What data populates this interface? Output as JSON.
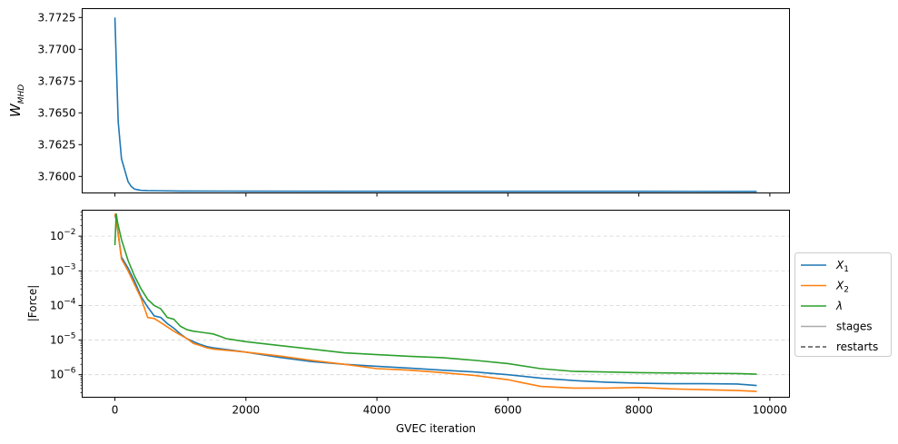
{
  "chart_data": [
    {
      "type": "line",
      "ylabel": "W_MHD",
      "ylabel_main": "W",
      "ylabel_sub": "MHD",
      "xlim": [
        -500,
        10300
      ],
      "ylim": [
        3.7587,
        3.7732
      ],
      "xticks": [
        0,
        2000,
        4000,
        6000,
        8000,
        10000
      ],
      "yticks": [
        3.76,
        3.7625,
        3.765,
        3.7675,
        3.77,
        3.7725
      ],
      "ytick_labels": [
        "3.7600",
        "3.7625",
        "3.7650",
        "3.7675",
        "3.7700",
        "3.7725"
      ],
      "grid": false,
      "series": [
        {
          "color": "#1f77b4",
          "x": [
            0,
            25,
            50,
            100,
            150,
            200,
            250,
            300,
            400,
            500,
            700,
            1000,
            2000,
            4000,
            6000,
            8000,
            9800
          ],
          "y": [
            3.7725,
            3.7683,
            3.7643,
            3.7614,
            3.7605,
            3.7596,
            3.7592,
            3.759,
            3.7589,
            3.75888,
            3.75887,
            3.75885,
            3.75884,
            3.75883,
            3.75883,
            3.75883,
            3.75882
          ]
        }
      ]
    },
    {
      "type": "line",
      "ylabel": "|Force|",
      "xlabel": "GVEC iteration",
      "yscale": "log",
      "xlim": [
        -500,
        10300
      ],
      "ylim_log10": [
        -6.65,
        -1.25
      ],
      "xticks": [
        0,
        2000,
        4000,
        6000,
        8000,
        10000
      ],
      "xtick_labels": [
        "0",
        "2000",
        "4000",
        "6000",
        "8000",
        "10000"
      ],
      "yticks_exp": [
        -6,
        -5,
        -4,
        -3,
        -2
      ],
      "ytick_base": "10",
      "grid": "horizontal dashed at major ticks",
      "legend": {
        "placement": "outside-right",
        "entries": [
          {
            "label_main": "X",
            "label_sub": "1",
            "color": "#1f77b4",
            "style": "solid"
          },
          {
            "label_main": "X",
            "label_sub": "2",
            "color": "#ff7f0e",
            "style": "solid"
          },
          {
            "label_main": "λ",
            "label_sub": "",
            "color": "#2ca02c",
            "style": "solid"
          },
          {
            "label_main": "stages",
            "label_sub": "",
            "color": "#aaaaaa",
            "style": "solid"
          },
          {
            "label_main": "restarts",
            "label_sub": "",
            "color": "#555555",
            "style": "dashed"
          }
        ]
      },
      "series": [
        {
          "color": "#1f77b4",
          "x": [
            0,
            20,
            100,
            200,
            300,
            400,
            500,
            600,
            700,
            800,
            900,
            1000,
            1100,
            1200,
            1300,
            1400,
            1500,
            2000,
            2500,
            3000,
            3500,
            4000,
            4500,
            5000,
            5500,
            6000,
            6500,
            7000,
            7500,
            8000,
            8500,
            9000,
            9500,
            9800
          ],
          "y": [
            0.04,
            0.03,
            0.0025,
            0.0012,
            0.0005,
            0.00018,
            9e-05,
            5e-05,
            4.5e-05,
            3e-05,
            2.2e-05,
            1.5e-05,
            1.1e-05,
            9e-06,
            7.5e-06,
            6.5e-06,
            6e-06,
            4.5e-06,
            3.2e-06,
            2.4e-06,
            2e-06,
            1.75e-06,
            1.55e-06,
            1.35e-06,
            1.2e-06,
            1e-06,
            8e-07,
            6.8e-07,
            6.1e-07,
            5.7e-07,
            5.5e-07,
            5.5e-07,
            5.4e-07,
            4.9e-07
          ]
        },
        {
          "color": "#ff7f0e",
          "x": [
            0,
            20,
            100,
            200,
            300,
            400,
            500,
            600,
            700,
            800,
            900,
            1000,
            1100,
            1200,
            1300,
            1400,
            1500,
            2000,
            2500,
            3000,
            3500,
            4000,
            4500,
            5000,
            5500,
            6000,
            6200,
            6500,
            7000,
            7500,
            8000,
            8500,
            9000,
            9500,
            9800
          ],
          "y": [
            0.045,
            0.03,
            0.0022,
            0.001,
            0.0004,
            0.00016,
            4.5e-05,
            4.2e-05,
            3.2e-05,
            2.4e-05,
            1.8e-05,
            1.4e-05,
            1.1e-05,
            8e-06,
            7e-06,
            6e-06,
            5.5e-06,
            4.5e-06,
            3.5e-06,
            2.6e-06,
            2e-06,
            1.5e-06,
            1.35e-06,
            1.15e-06,
            9.5e-07,
            7.2e-07,
            6e-07,
            4.6e-07,
            4.1e-07,
            4.1e-07,
            4.3e-07,
            3.9e-07,
            3.7e-07,
            3.5e-07,
            3.3e-07
          ]
        },
        {
          "color": "#2ca02c",
          "x": [
            0,
            20,
            40,
            100,
            200,
            300,
            400,
            500,
            600,
            700,
            800,
            900,
            1000,
            1100,
            1200,
            1300,
            1400,
            1500,
            1600,
            1700,
            2000,
            2500,
            3000,
            3500,
            4000,
            4500,
            5000,
            5500,
            6000,
            6500,
            7000,
            7500,
            8000,
            8500,
            9000,
            9500,
            9800
          ],
          "y": [
            0.0055,
            0.045,
            0.025,
            0.008,
            0.002,
            0.0007,
            0.0003,
            0.00015,
            0.0001,
            8e-05,
            4.5e-05,
            4e-05,
            2.5e-05,
            2e-05,
            1.8e-05,
            1.7e-05,
            1.6e-05,
            1.5e-05,
            1.3e-05,
            1.1e-05,
            9e-06,
            7e-06,
            5.5e-06,
            4.3e-06,
            3.8e-06,
            3.4e-06,
            3.1e-06,
            2.6e-06,
            2.1e-06,
            1.5e-06,
            1.25e-06,
            1.2e-06,
            1.15e-06,
            1.12e-06,
            1.1e-06,
            1.08e-06,
            1.04e-06
          ]
        }
      ]
    }
  ]
}
